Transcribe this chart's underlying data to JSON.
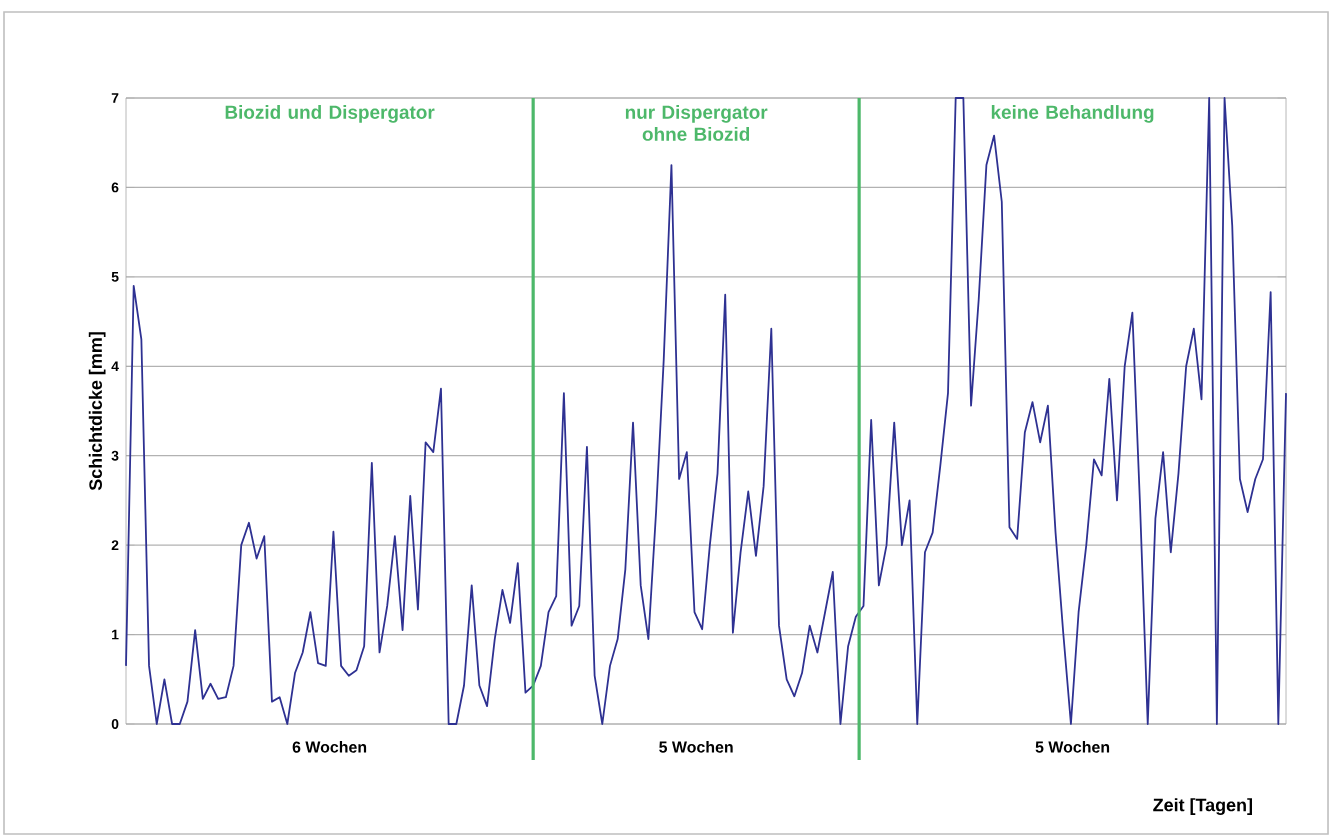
{
  "chart_data": {
    "type": "line",
    "xlabel": "Zeit [Tagen]",
    "ylabel": "Schichtdicke [mm]",
    "categories": [
      null,
      null,
      null,
      null,
      null,
      null,
      null,
      null,
      null,
      null,
      null,
      null,
      null,
      null,
      null,
      null,
      null,
      null,
      null,
      null,
      null,
      null,
      null,
      null,
      null,
      null,
      null,
      null,
      null,
      null,
      null,
      null,
      null,
      null,
      null,
      null,
      null,
      null,
      null,
      null,
      null,
      null,
      null,
      null,
      null,
      null,
      null,
      null,
      null,
      null,
      null,
      null,
      null,
      null,
      null,
      null,
      null,
      null,
      null,
      null,
      null,
      null,
      null,
      null,
      null,
      null,
      null,
      null,
      null,
      null,
      null,
      null,
      null,
      null,
      null,
      null,
      null,
      null,
      null,
      null,
      null,
      null,
      null,
      null,
      null,
      null,
      null,
      null,
      null,
      null,
      null,
      null,
      null,
      null,
      null,
      null,
      null,
      null,
      null,
      null,
      null,
      null,
      null,
      null,
      null,
      null,
      null,
      null,
      null,
      null,
      null,
      null,
      null,
      null,
      null,
      null,
      null,
      null,
      null,
      null,
      null,
      null,
      null,
      null,
      null,
      null,
      null,
      null,
      null,
      null,
      null,
      null,
      null,
      null,
      null,
      null,
      null,
      null,
      null,
      null,
      null,
      null,
      null,
      null,
      null,
      null,
      null,
      null,
      null,
      null,
      null,
      null
    ],
    "values": [
      0.65,
      4.9,
      4.3,
      0.65,
      0,
      0.5,
      0,
      0,
      0.25,
      1.05,
      0.28,
      0.45,
      0.28,
      0.3,
      0.65,
      2.0,
      2.25,
      1.85,
      2.1,
      0.25,
      0.3,
      0,
      0.57,
      0.8,
      1.25,
      0.68,
      0.65,
      2.15,
      0.65,
      0.54,
      0.6,
      0.87,
      2.92,
      0.8,
      1.32,
      2.1,
      1.05,
      2.55,
      1.28,
      3.15,
      3.04,
      3.75,
      0,
      0,
      0.43,
      1.55,
      0.43,
      0.2,
      0.95,
      1.5,
      1.13,
      1.8,
      0.35,
      0.43,
      0.65,
      1.25,
      1.43,
      3.7,
      1.1,
      1.32,
      3.1,
      0.54,
      0,
      0.65,
      0.95,
      1.73,
      3.37,
      1.55,
      0.95,
      2.37,
      4.08,
      6.25,
      2.74,
      3.04,
      1.25,
      1.06,
      2.0,
      2.8,
      4.8,
      1.02,
      1.92,
      2.6,
      1.88,
      2.66,
      4.42,
      1.1,
      0.5,
      0.31,
      0.57,
      1.1,
      0.8,
      1.25,
      1.7,
      0,
      0.87,
      1.2,
      1.32,
      3.4,
      1.55,
      2.0,
      3.37,
      2.0,
      2.5,
      0,
      1.92,
      2.14,
      2.89,
      3.7,
      7.0,
      7.0,
      3.56,
      4.75,
      6.25,
      6.58,
      5.84,
      2.2,
      2.07,
      3.26,
      3.6,
      3.15,
      3.56,
      2.14,
      1.02,
      0,
      1.25,
      2.0,
      2.96,
      2.78,
      3.86,
      2.5,
      4.0,
      4.6,
      2.44,
      0,
      2.3,
      3.04,
      1.92,
      2.8,
      4.0,
      4.42,
      3.63,
      7.0,
      0,
      7.0,
      5.57,
      2.74,
      2.37,
      2.74,
      2.96,
      4.83,
      0,
      3.7
    ],
    "color": "#2e3192",
    "ylim": [
      0,
      7
    ],
    "yticks": [
      0,
      1,
      2,
      3,
      4,
      5,
      6,
      7
    ],
    "tick_labels": "y",
    "grid": "y",
    "marker": "none",
    "line_style": "solid",
    "annotations": [
      "Biozid und Dispergator",
      "nur Dispergator ohne Biozid",
      "keine Behandlung",
      "6 Wochen",
      "5 Wochen",
      "5 Wochen"
    ]
  }
}
